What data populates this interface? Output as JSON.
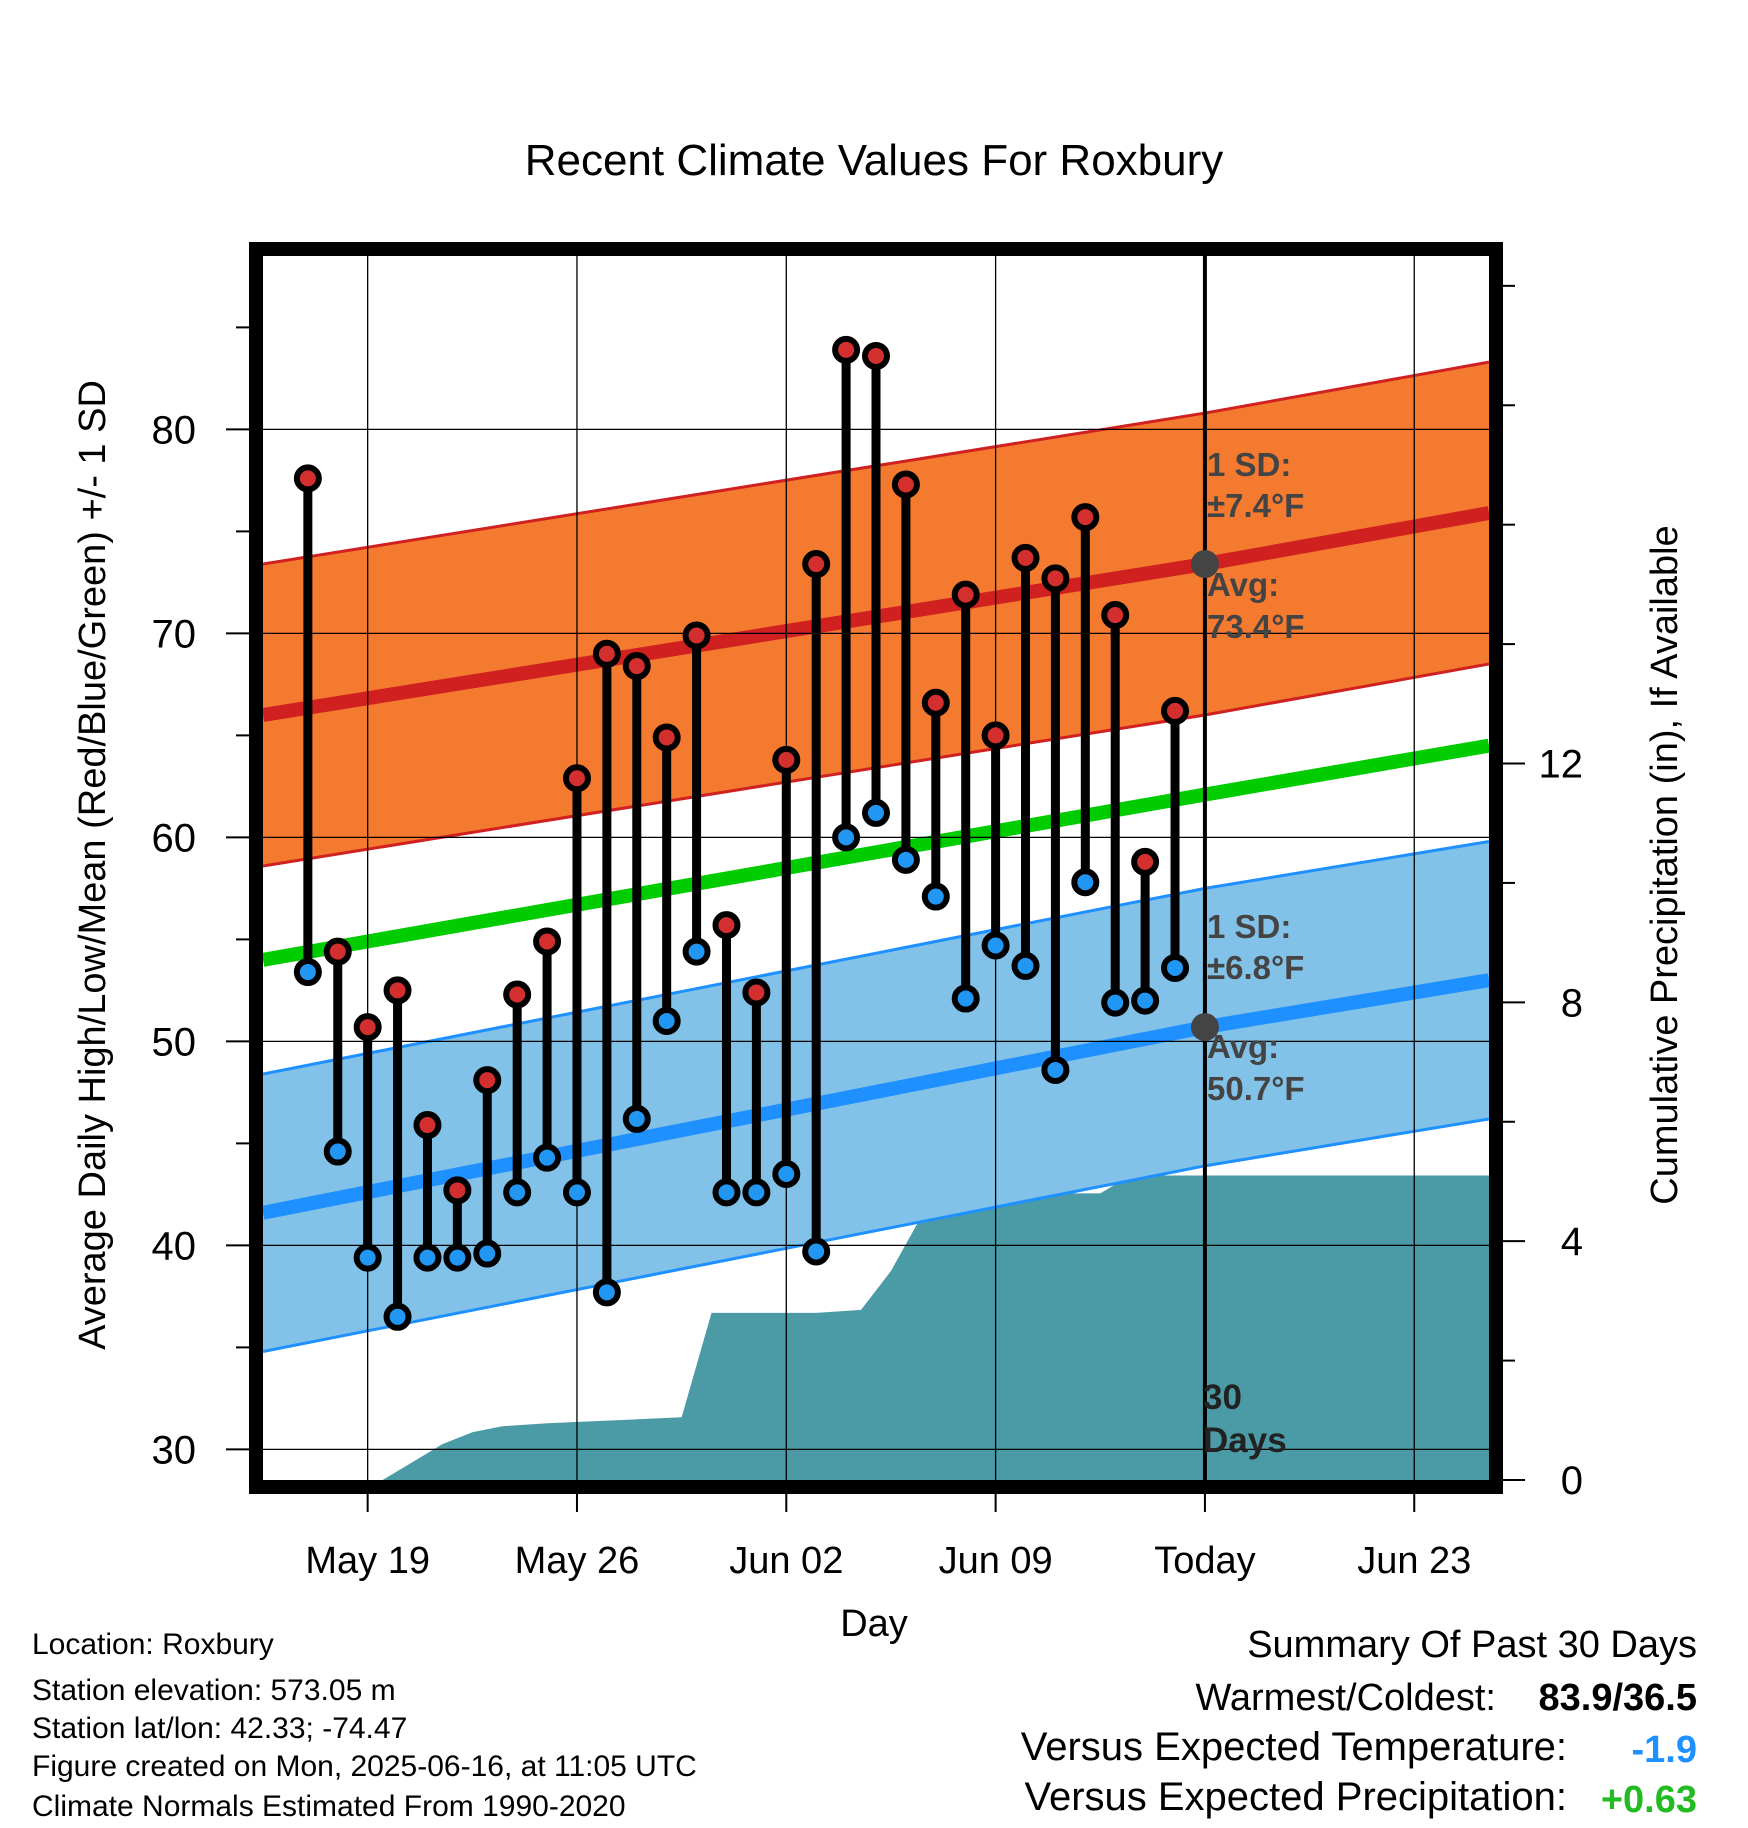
{
  "chart_data": {
    "type": "line",
    "title": "Recent Climate Values For Roxbury",
    "xlabel": "Day",
    "ylabel": "Average Daily High/Low/Mean (Red/Blue/Green) +/- 1 SD",
    "y2label": "Cumulative Precipitation (in), If Available",
    "ylim": [
      28.5,
      88.5
    ],
    "y2lim": [
      0,
      20.5
    ],
    "xlim": [
      -3.5,
      37.5
    ],
    "grid": true,
    "x_tick_labels": [
      {
        "x": 0,
        "label": "May 19"
      },
      {
        "x": 7,
        "label": "May 26"
      },
      {
        "x": 14,
        "label": "Jun 02"
      },
      {
        "x": 21,
        "label": "Jun 09"
      },
      {
        "x": 28,
        "label": "Today"
      },
      {
        "x": 35,
        "label": "Jun 23"
      }
    ],
    "y_ticks": [
      "30",
      "40",
      "50",
      "60",
      "70",
      "80"
    ],
    "y2_ticks": [
      "0",
      "4",
      "8",
      "12"
    ],
    "daily_x": [
      -2,
      -1,
      0,
      1,
      2,
      3,
      4,
      5,
      6,
      7,
      8,
      9,
      10,
      11,
      12,
      13,
      14,
      15,
      16,
      17,
      18,
      19,
      20,
      21,
      22,
      23,
      24,
      25,
      26,
      27,
      28
    ],
    "highs": [
      77.6,
      54.4,
      50.7,
      52.5,
      45.9,
      42.7,
      48.1,
      52.3,
      54.9,
      62.9,
      69.0,
      68.4,
      64.9,
      69.9,
      55.7,
      52.4,
      63.8,
      73.4,
      83.9,
      83.6,
      77.3,
      66.6,
      71.9,
      65.0,
      73.7,
      72.7,
      75.7,
      70.9,
      58.8,
      66.2,
      null
    ],
    "lows": [
      53.4,
      44.6,
      39.4,
      36.5,
      39.4,
      39.4,
      39.6,
      42.6,
      44.3,
      42.6,
      37.7,
      46.2,
      51.0,
      54.4,
      42.6,
      42.6,
      43.5,
      39.7,
      60.0,
      61.2,
      58.9,
      57.1,
      52.1,
      54.7,
      53.7,
      48.6,
      57.8,
      51.9,
      52.0,
      53.6,
      null
    ],
    "normal_high": {
      "x": [
        -3.5,
        28,
        37.5
      ],
      "values": [
        66.0,
        73.4,
        75.9
      ]
    },
    "normal_high_sd": 7.4,
    "normal_low": {
      "x": [
        -3.5,
        28,
        37.5
      ],
      "values": [
        41.6,
        50.7,
        53.0
      ]
    },
    "normal_low_sd": 6.8,
    "normal_mean": {
      "x": [
        -3.5,
        28,
        37.5
      ],
      "values": [
        54.0,
        62.1,
        64.5
      ]
    },
    "precip_cumulative": {
      "x": [
        -3.5,
        -1.5,
        0.5,
        1.5,
        2.5,
        3.5,
        4.5,
        6,
        10.5,
        11.5,
        15,
        16.5,
        17.5,
        18.5,
        19.5,
        20.5,
        21.5,
        23.5,
        24.5,
        25.5,
        26,
        27,
        28,
        37.5
      ],
      "values": [
        0,
        0,
        0,
        0.3,
        0.6,
        0.8,
        0.9,
        0.95,
        1.05,
        2.8,
        2.8,
        2.85,
        3.5,
        4.4,
        4.45,
        4.7,
        4.8,
        4.8,
        4.8,
        5.1,
        5.1,
        5.1,
        5.1,
        5.1
      ]
    },
    "annotations": {
      "high_sd_label": "1 SD:",
      "high_sd_value": "±7.4°F",
      "high_avg_label": "Avg:",
      "high_avg_value": "73.4°F",
      "low_sd_label": "1 SD:",
      "low_sd_value": "±6.8°F",
      "low_avg_label": "Avg:",
      "low_avg_value": "50.7°F",
      "days_line1": "30",
      "days_line2": "Days"
    },
    "colors": {
      "high_band": "#f47a30",
      "high_line": "#d02020",
      "low_band": "#82c2e8",
      "low_line": "#1e90ff",
      "mean_line": "#00cc00",
      "precip": "#4a9ba5",
      "high_marker": "#d32f2f",
      "low_marker": "#2196f3"
    }
  },
  "footer": {
    "location": "Location: Roxbury",
    "elevation": "Station elevation: 573.05 m",
    "latlon": "Station lat/lon: 42.33; -74.47",
    "created": "Figure created on Mon, 2025-06-16, at 11:05 UTC",
    "normals": "Climate Normals Estimated From 1990-2020"
  },
  "summary": {
    "heading": "Summary Of Past 30 Days",
    "warmest_coldest_label": "Warmest/Coldest:",
    "warmest_coldest_value": "83.9/36.5",
    "temp_label": "Versus Expected Temperature:",
    "temp_value": "-1.9",
    "temp_color": "#1e90ff",
    "precip_label": "Versus Expected Precipitation:",
    "precip_value": "+0.63",
    "precip_color": "#22bb22"
  }
}
